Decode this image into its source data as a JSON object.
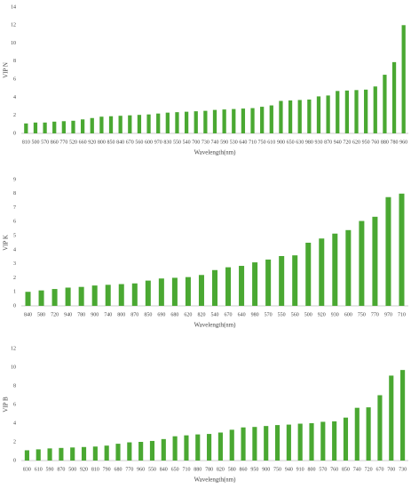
{
  "chart_data": [
    {
      "type": "bar",
      "y_label": "VIP N",
      "x_label": "Wavelength(nm)",
      "color": "#4aa832",
      "categories": [
        "810",
        "500",
        "570",
        "860",
        "770",
        "520",
        "660",
        "920",
        "800",
        "850",
        "840",
        "670",
        "560",
        "600",
        "970",
        "830",
        "550",
        "540",
        "700",
        "730",
        "740",
        "590",
        "530",
        "640",
        "710",
        "750",
        "610",
        "900",
        "650",
        "630",
        "980",
        "930",
        "870",
        "940",
        "720",
        "620",
        "950",
        "760",
        "880",
        "780",
        "960"
      ],
      "values": [
        1.1,
        1.2,
        1.2,
        1.3,
        1.35,
        1.4,
        1.55,
        1.7,
        1.85,
        1.9,
        1.95,
        2.0,
        2.05,
        2.1,
        2.2,
        2.3,
        2.35,
        2.4,
        2.45,
        2.5,
        2.6,
        2.65,
        2.7,
        2.75,
        2.8,
        2.95,
        3.1,
        3.6,
        3.65,
        3.7,
        3.75,
        4.1,
        4.2,
        4.7,
        4.75,
        4.8,
        4.85,
        5.2,
        6.5,
        7.9,
        12
      ],
      "ylim": [
        0,
        14
      ],
      "yticks": [
        0,
        2,
        4,
        6,
        8,
        10,
        12,
        14
      ]
    },
    {
      "type": "bar",
      "y_label": "VIP K",
      "x_label": "Wavelength(nm)",
      "color": "#4aa832",
      "categories": [
        "840",
        "580",
        "720",
        "940",
        "780",
        "900",
        "740",
        "800",
        "870",
        "850",
        "690",
        "680",
        "620",
        "820",
        "540",
        "670",
        "640",
        "980",
        "570",
        "550",
        "560",
        "500",
        "920",
        "930",
        "600",
        "750",
        "770",
        "970",
        "710"
      ],
      "values": [
        1.0,
        1.1,
        1.2,
        1.3,
        1.35,
        1.45,
        1.5,
        1.55,
        1.6,
        1.8,
        1.95,
        2.0,
        2.05,
        2.2,
        2.55,
        2.75,
        2.85,
        3.1,
        3.3,
        3.55,
        3.6,
        4.5,
        4.8,
        5.15,
        5.4,
        6.05,
        6.35,
        7.75,
        8.0
      ],
      "ylim": [
        0,
        9
      ],
      "yticks": [
        0,
        1,
        2,
        3,
        4,
        5,
        6,
        7,
        8,
        9
      ]
    },
    {
      "type": "bar",
      "y_label": "VIP B",
      "x_label": "Wavelength(nm)",
      "color": "#4aa832",
      "categories": [
        "830",
        "610",
        "590",
        "870",
        "500",
        "920",
        "810",
        "790",
        "680",
        "770",
        "960",
        "550",
        "840",
        "650",
        "710",
        "880",
        "780",
        "820",
        "580",
        "860",
        "950",
        "900",
        "750",
        "940",
        "910",
        "800",
        "570",
        "760",
        "850",
        "740",
        "720",
        "670",
        "700",
        "730"
      ],
      "values": [
        1.1,
        1.2,
        1.3,
        1.35,
        1.4,
        1.45,
        1.5,
        1.6,
        1.8,
        1.95,
        2.0,
        2.1,
        2.3,
        2.6,
        2.7,
        2.8,
        2.85,
        3.0,
        3.3,
        3.55,
        3.6,
        3.7,
        3.8,
        3.85,
        3.95,
        4.0,
        4.15,
        4.2,
        4.6,
        5.65,
        5.7,
        7.0,
        9.1,
        9.7
      ],
      "ylim": [
        0,
        12
      ],
      "yticks": [
        0,
        2,
        4,
        6,
        8,
        10,
        12
      ]
    }
  ]
}
